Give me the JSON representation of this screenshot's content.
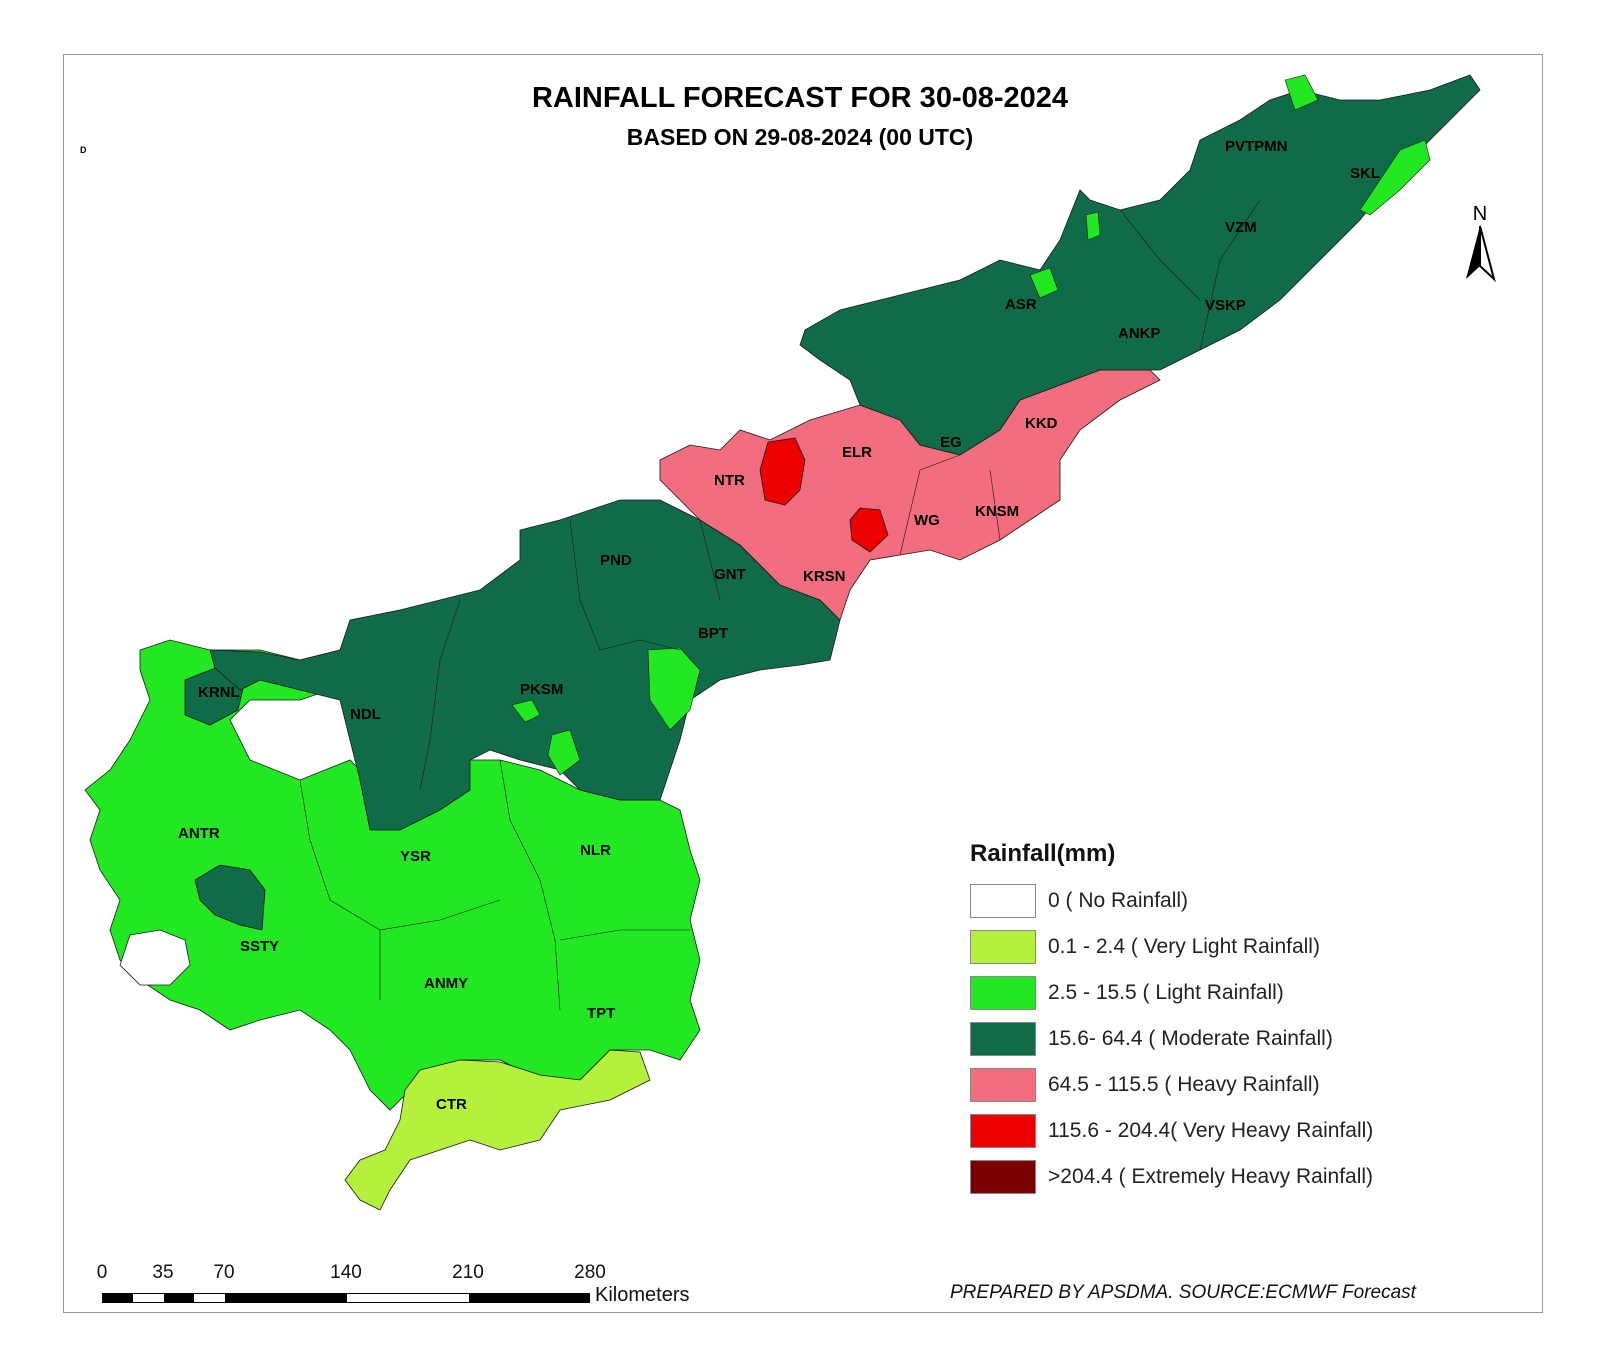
{
  "title": "RAINFALL FORECAST FOR 30-08-2024",
  "subtitle": "BASED ON 29-08-2024 (00 UTC)",
  "corner_mark": "D",
  "north_label": "N",
  "districts": [
    {
      "code": "PVTPMN",
      "category": "moderate"
    },
    {
      "code": "SKL",
      "category": "moderate"
    },
    {
      "code": "VZM",
      "category": "moderate"
    },
    {
      "code": "ASR",
      "category": "moderate"
    },
    {
      "code": "VSKP",
      "category": "moderate"
    },
    {
      "code": "ANKP",
      "category": "moderate"
    },
    {
      "code": "KKD",
      "category": "heavy"
    },
    {
      "code": "EG",
      "category": "moderate"
    },
    {
      "code": "ELR",
      "category": "heavy"
    },
    {
      "code": "NTR",
      "category": "heavy"
    },
    {
      "code": "KNSM",
      "category": "heavy"
    },
    {
      "code": "WG",
      "category": "heavy"
    },
    {
      "code": "PND",
      "category": "moderate"
    },
    {
      "code": "GNT",
      "category": "moderate"
    },
    {
      "code": "KRSN",
      "category": "heavy"
    },
    {
      "code": "BPT",
      "category": "moderate"
    },
    {
      "code": "KRNL",
      "category": "moderate"
    },
    {
      "code": "PKSM",
      "category": "moderate"
    },
    {
      "code": "NDL",
      "category": "moderate"
    },
    {
      "code": "ANTR",
      "category": "light"
    },
    {
      "code": "YSR",
      "category": "light"
    },
    {
      "code": "NLR",
      "category": "light"
    },
    {
      "code": "SSTY",
      "category": "light"
    },
    {
      "code": "ANMY",
      "category": "light"
    },
    {
      "code": "TPT",
      "category": "light"
    },
    {
      "code": "CTR",
      "category": "very_light"
    }
  ],
  "legend": {
    "title": "Rainfall(mm)",
    "items": [
      {
        "label": "0 ( No Rainfall)",
        "color": "#ffffff"
      },
      {
        "label": "0.1 - 2.4 ( Very Light Rainfall)",
        "color": "#b4f03c"
      },
      {
        "label": "2.5 - 15.5 ( Light Rainfall)",
        "color": "#22e822"
      },
      {
        "label": "15.6- 64.4 ( Moderate Rainfall)",
        "color": "#0f6b48"
      },
      {
        "label": "64.5 - 115.5 ( Heavy Rainfall)",
        "color": "#f26d7d"
      },
      {
        "label": "115.6 - 204.4( Very Heavy Rainfall)",
        "color": "#ee0000"
      },
      {
        "label": ">204.4 ( Extremely Heavy Rainfall)",
        "color": "#7a0000"
      }
    ]
  },
  "scale": {
    "ticks": [
      "0",
      "35",
      "70",
      "140",
      "210",
      "280"
    ],
    "unit": "Kilometers"
  },
  "credit": "PREPARED BY APSDMA. SOURCE:ECMWF Forecast"
}
